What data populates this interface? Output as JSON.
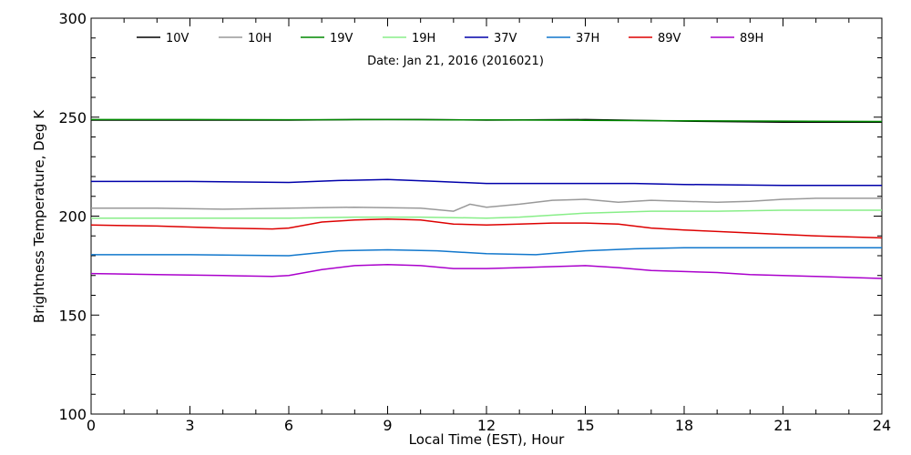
{
  "chart_data": {
    "type": "line",
    "title": "",
    "subtitle": "Date: Jan 21, 2016 (2016021)",
    "xlabel": "Local Time (EST), Hour",
    "ylabel": "Brightness Temperature, Deg K",
    "xlim": [
      0,
      24
    ],
    "ylim": [
      100,
      300
    ],
    "x_ticks": [
      0,
      3,
      6,
      9,
      12,
      15,
      18,
      21,
      24
    ],
    "y_ticks": [
      100,
      150,
      200,
      250,
      300
    ],
    "grid": false,
    "legend_position": "top",
    "series": [
      {
        "name": "10V",
        "color": "#000000",
        "x": [
          0,
          3,
          6,
          8,
          10,
          12,
          15,
          18,
          21,
          24
        ],
        "y": [
          248.5,
          248.5,
          248.5,
          248.8,
          248.8,
          248.5,
          248.8,
          248,
          247.5,
          247.5
        ]
      },
      {
        "name": "10H",
        "color": "#999999",
        "x": [
          0,
          2,
          4,
          6,
          8,
          10,
          11,
          11.5,
          12,
          13,
          14,
          15,
          16,
          17,
          18,
          19,
          20,
          21,
          22,
          24
        ],
        "y": [
          204,
          204,
          203.5,
          204,
          204.5,
          204,
          202.5,
          206,
          204.5,
          206,
          208,
          208.5,
          207,
          208,
          207.5,
          207,
          207.5,
          208.5,
          209,
          209
        ]
      },
      {
        "name": "19V",
        "color": "#008800",
        "x": [
          0,
          3,
          6,
          9,
          12,
          15,
          18,
          21,
          24
        ],
        "y": [
          248.8,
          248.8,
          248.7,
          248.8,
          248.6,
          248.4,
          248.2,
          248,
          247.8
        ]
      },
      {
        "name": "19H",
        "color": "#88ee88",
        "x": [
          0,
          3,
          6,
          8,
          10,
          12,
          13,
          15,
          17,
          19,
          21,
          24
        ],
        "y": [
          199,
          199,
          199,
          199.5,
          199.5,
          199,
          199.5,
          201.5,
          202.5,
          202.5,
          203,
          203
        ]
      },
      {
        "name": "37V",
        "color": "#0000aa",
        "x": [
          0,
          3,
          6,
          7.5,
          9,
          10.5,
          12,
          13.5,
          15,
          16.5,
          18,
          21,
          24
        ],
        "y": [
          217.5,
          217.5,
          217,
          218,
          218.5,
          217.5,
          216.5,
          216.5,
          216.5,
          216.5,
          216,
          215.5,
          215.5
        ]
      },
      {
        "name": "37H",
        "color": "#1177cc",
        "x": [
          0,
          3,
          6,
          7.5,
          9,
          10.5,
          12,
          13.5,
          15,
          16.5,
          18,
          21,
          24
        ],
        "y": [
          180.5,
          180.5,
          180,
          182.5,
          183,
          182.5,
          181,
          180.5,
          182.5,
          183.5,
          184,
          184,
          184
        ]
      },
      {
        "name": "89V",
        "color": "#dd0000",
        "x": [
          0,
          2,
          4,
          5.5,
          6,
          7,
          8,
          9,
          10,
          11,
          12,
          13,
          14,
          15,
          16,
          17,
          18,
          20,
          22,
          24
        ],
        "y": [
          195.5,
          195,
          194,
          193.5,
          194,
          197,
          198,
          198.5,
          198,
          196,
          195.5,
          196,
          196.5,
          196.5,
          196,
          194,
          193,
          191.5,
          190,
          189
        ]
      },
      {
        "name": "89H",
        "color": "#aa00cc",
        "x": [
          0,
          2,
          4,
          5.5,
          6,
          7,
          8,
          9,
          10,
          11,
          12,
          13,
          14,
          15,
          16,
          17,
          18,
          19,
          20,
          22,
          24
        ],
        "y": [
          171,
          170.5,
          170,
          169.5,
          170,
          173,
          175,
          175.5,
          175,
          173.5,
          173.5,
          174,
          174.5,
          175,
          174,
          172.5,
          172,
          171.5,
          170.5,
          169.5,
          168.5
        ]
      }
    ]
  }
}
